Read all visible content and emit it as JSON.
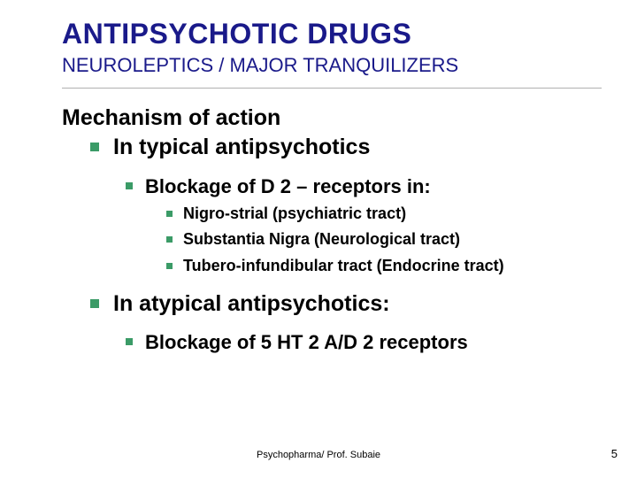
{
  "title": "ANTIPSYCHOTIC DRUGS",
  "subtitle": "NEUROLEPTICS / MAJOR TRANQUILIZERS",
  "heading": "Mechanism of action",
  "sec1": {
    "label": "In typical antipsychotics",
    "sub": "Blockage of D 2 – receptors in:",
    "items": [
      "Nigro-strial (psychiatric tract)",
      "Substantia Nigra (Neurological tract)",
      "Tubero-infundibular tract (Endocrine tract)"
    ]
  },
  "sec2": {
    "label": "In atypical antipsychotics:",
    "sub": "Blockage of 5 HT 2 A/D 2 receptors"
  },
  "footer": "Psychopharma/ Prof. Subaie",
  "page": "5",
  "colors": {
    "title": "#1a1a8a",
    "bullet": "#3b9b67",
    "text": "#000000",
    "background": "#ffffff",
    "divider": "#b0b0b0"
  },
  "fonts": {
    "title_size": 32,
    "subtitle_size": 22,
    "h1_size": 25,
    "lvl2_size": 22,
    "lvl3_size": 18,
    "footer_size": 11
  }
}
